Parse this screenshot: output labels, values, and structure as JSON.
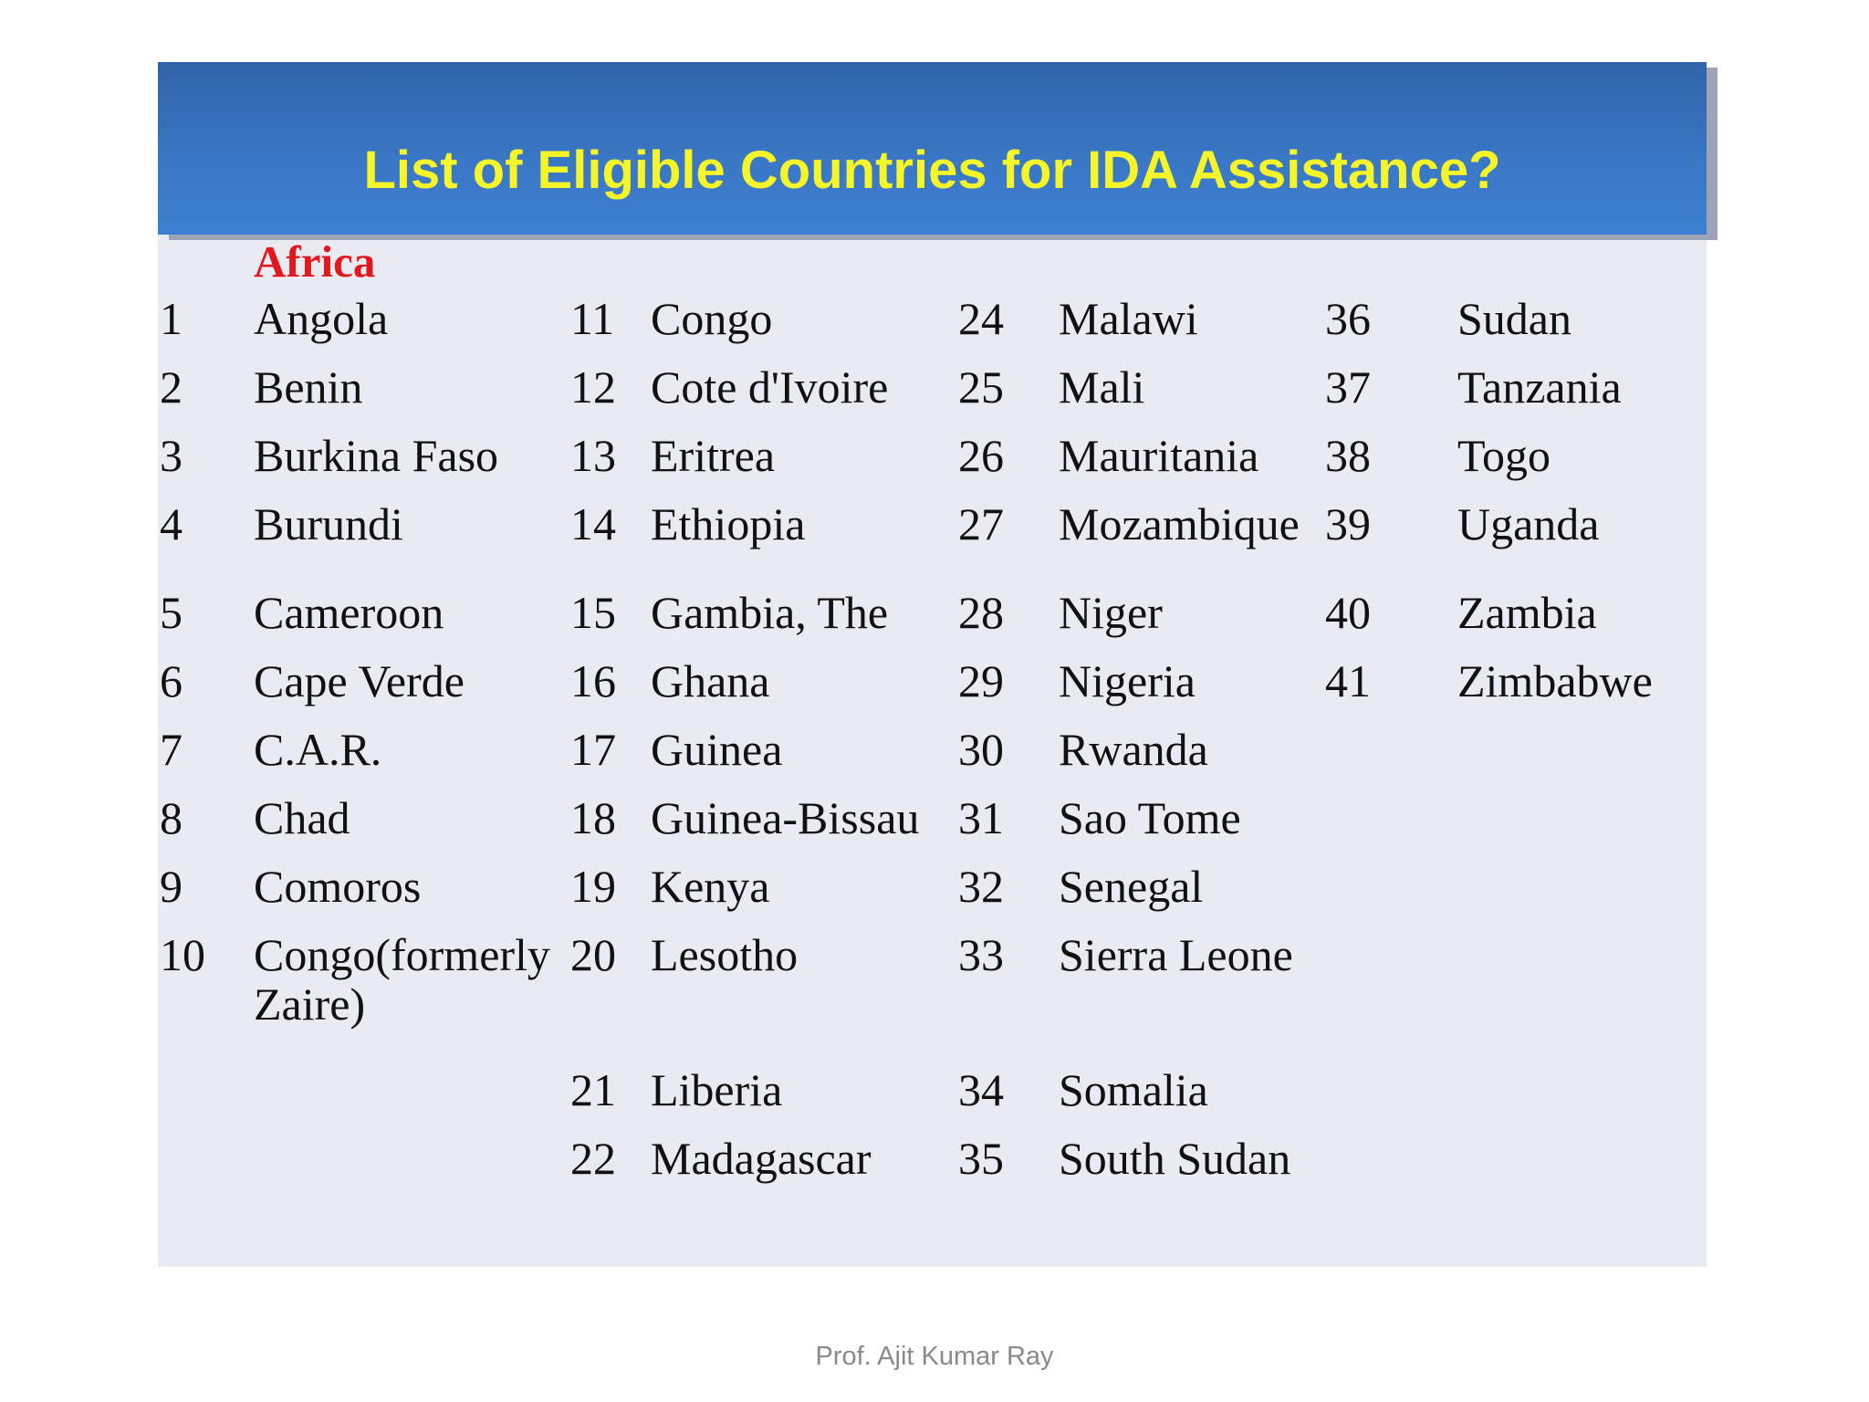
{
  "title": "List of Eligible Countries for IDA Assistance?",
  "region": "Africa",
  "footer": "Prof. Ajit Kumar Ray",
  "rows": [
    [
      "1",
      "Angola",
      "11",
      "Congo",
      "24",
      "Malawi",
      "36",
      "Sudan"
    ],
    [
      "2",
      "Benin",
      "12",
      "Cote d'Ivoire",
      "25",
      "Mali",
      "37",
      "Tanzania"
    ],
    [
      "3",
      "Burkina Faso",
      "13",
      "Eritrea",
      "26",
      "Mauritania",
      "38",
      "Togo"
    ],
    [
      "4",
      "Burundi",
      "14",
      "Ethiopia",
      "27",
      "Mozambique",
      "39",
      "Uganda"
    ],
    [
      "5",
      "Cameroon",
      "15",
      "Gambia, The",
      "28",
      "Niger",
      "40",
      "Zambia"
    ],
    [
      "6",
      "Cape Verde",
      "16",
      "Ghana",
      "29",
      "Nigeria",
      "41",
      "Zimbabwe"
    ],
    [
      "7",
      "C.A.R.",
      "17",
      "Guinea",
      "30",
      "Rwanda",
      "",
      ""
    ],
    [
      "8",
      "Chad",
      "18",
      "Guinea-Bissau",
      "31",
      "Sao Tome",
      "",
      ""
    ],
    [
      "9",
      "Comoros",
      "19",
      "Kenya",
      "32",
      "Senegal",
      "",
      ""
    ],
    [
      "10",
      "Congo(formerly",
      "20",
      "Lesotho",
      "33",
      "Sierra Leone",
      "",
      ""
    ],
    [
      "",
      "Zaire)",
      "",
      "",
      "",
      "",
      "",
      ""
    ],
    [
      "",
      "",
      "21",
      "Liberia",
      "34",
      "Somalia",
      "",
      ""
    ],
    [
      "",
      "",
      "22",
      "Madagascar",
      "35",
      "South Sudan",
      "",
      ""
    ]
  ]
}
